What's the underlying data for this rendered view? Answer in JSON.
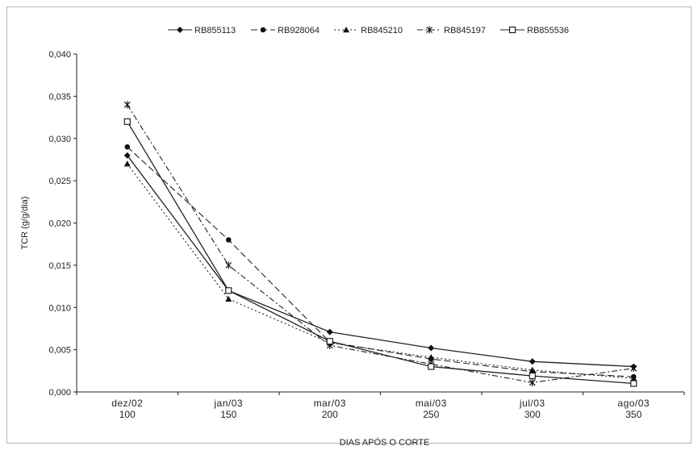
{
  "chart_data": {
    "type": "line",
    "title": "",
    "xlabel": "DIAS APÓS O CORTE",
    "ylabel": "TCR (g/g/dia)",
    "x": [
      100,
      150,
      200,
      250,
      300,
      350
    ],
    "x_tick_labels": [
      {
        "month": "dez/02",
        "days": "100"
      },
      {
        "month": "jan/03",
        "days": "150"
      },
      {
        "month": "mar/03",
        "days": "200"
      },
      {
        "month": "mai/03",
        "days": "250"
      },
      {
        "month": "jul/03",
        "days": "300"
      },
      {
        "month": "ago/03",
        "days": "350"
      }
    ],
    "ylim": [
      0,
      0.04
    ],
    "y_ticks": [
      "0,000",
      "0,005",
      "0,010",
      "0,015",
      "0,020",
      "0,025",
      "0,030",
      "0,035",
      "0,040"
    ],
    "grid": false,
    "legend_position": "top",
    "series": [
      {
        "name": "RB855113",
        "marker": "diamond-filled",
        "dash": "solid",
        "values": [
          0.028,
          0.012,
          0.0071,
          0.0052,
          0.0036,
          0.003
        ]
      },
      {
        "name": "RB928064",
        "marker": "circle-filled",
        "dash": "dashed",
        "values": [
          0.029,
          0.018,
          0.0059,
          0.0039,
          0.0024,
          0.0018
        ]
      },
      {
        "name": "RB845210",
        "marker": "triangle-filled",
        "dash": "dotted",
        "values": [
          0.027,
          0.011,
          0.0058,
          0.0041,
          0.0026,
          0.0016
        ]
      },
      {
        "name": "RB845197",
        "marker": "star",
        "dash": "dash-dot",
        "values": [
          0.034,
          0.015,
          0.0055,
          0.0033,
          0.0011,
          0.0028
        ]
      },
      {
        "name": "RB855536",
        "marker": "square-open",
        "dash": "solid",
        "values": [
          0.032,
          0.012,
          0.006,
          0.003,
          0.0019,
          0.001
        ]
      }
    ]
  }
}
